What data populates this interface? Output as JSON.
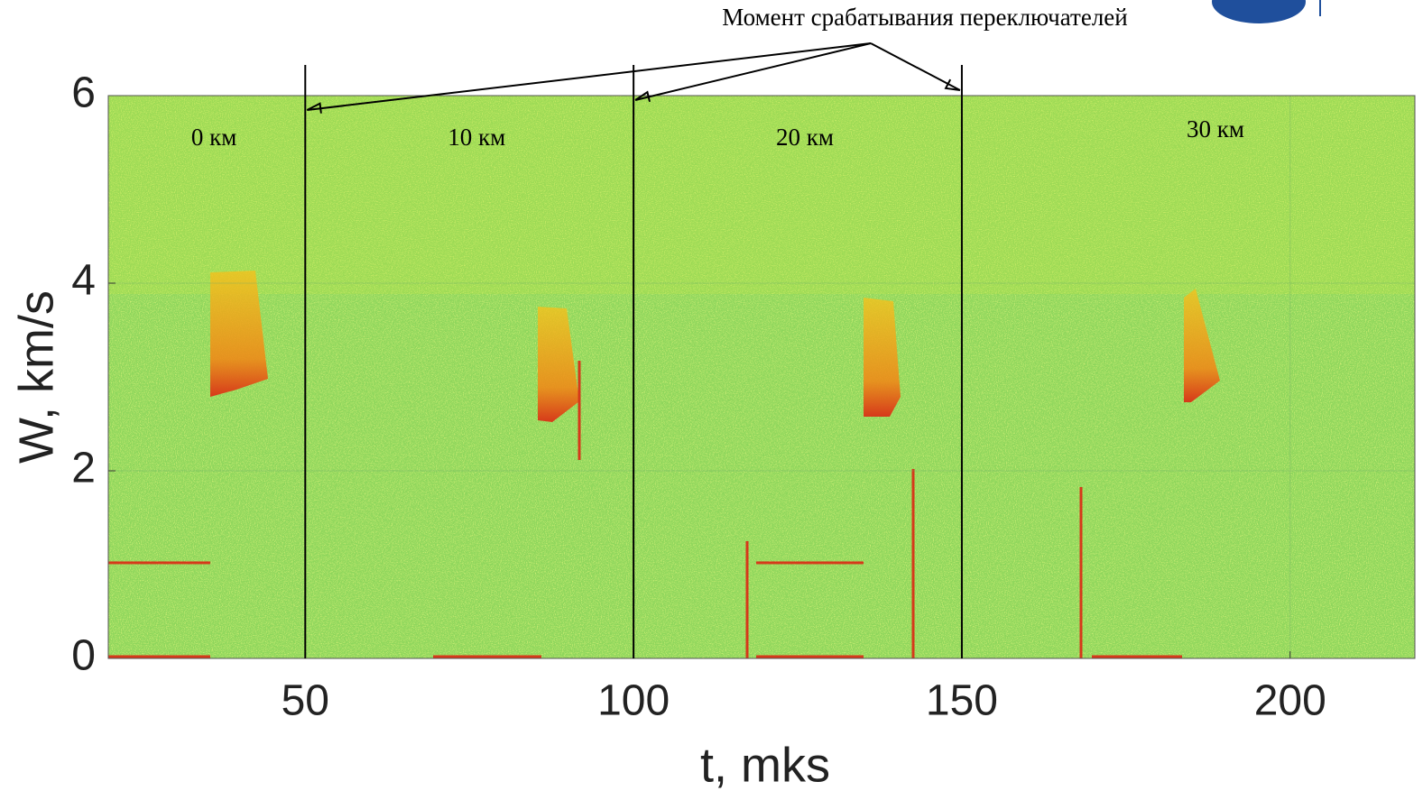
{
  "chart_data": {
    "type": "spectrogram",
    "xlabel": "t, mks",
    "ylabel": "W, km/s",
    "xlim": [
      20,
      219
    ],
    "ylim": [
      0,
      6
    ],
    "xticks": [
      50,
      100,
      150,
      200
    ],
    "yticks": [
      0,
      2,
      4,
      6
    ],
    "grid": true,
    "annotation": "Момент срабатывания переключателей",
    "switch_times": [
      50,
      100,
      150
    ],
    "segment_labels": [
      "0 км",
      "10 км",
      "20 км",
      "30 км"
    ]
  }
}
